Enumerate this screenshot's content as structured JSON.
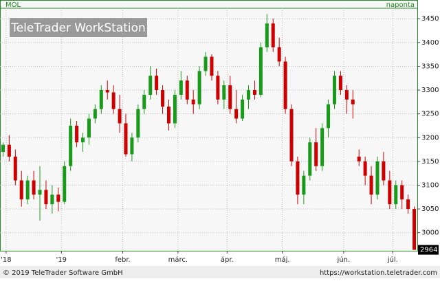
{
  "header": {
    "symbol": "MOL",
    "interval": "naponta",
    "watermark": "TeleTrader WorkStation"
  },
  "footer": {
    "copyright": "© 2019 TeleTrader Software GmbH",
    "url": "https://workstation.teletrader.com"
  },
  "chart_data": {
    "type": "candlestick",
    "up_color": "#1a9a1a",
    "down_color": "#cc0000",
    "grid": true,
    "ylim": [
      2962,
      3472
    ],
    "yticks": [
      3000,
      3050,
      3100,
      3150,
      3200,
      3250,
      3300,
      3350,
      3400,
      3450
    ],
    "xlim": [
      0,
      68
    ],
    "xticks": [
      {
        "value": 1,
        "label": "'18"
      },
      {
        "value": 10,
        "label": "'19"
      },
      {
        "value": 20,
        "label": "febr."
      },
      {
        "value": 29,
        "label": "márc."
      },
      {
        "value": 37,
        "label": "ápr."
      },
      {
        "value": 46,
        "label": "máj."
      },
      {
        "value": 56,
        "label": "jún."
      },
      {
        "value": 64,
        "label": "júl."
      }
    ],
    "last_price": 2964,
    "open": [
      3170,
      3185,
      3160,
      3110,
      3070,
      3110,
      3080,
      3090,
      3060,
      3080,
      3065,
      3140,
      3225,
      3190,
      3200,
      3240,
      3260,
      3300,
      3295,
      3260,
      3230,
      3165,
      3200,
      3260,
      3290,
      3330,
      3300,
      3265,
      3230,
      3290,
      3320,
      3280,
      3270,
      3340,
      3370,
      3330,
      3280,
      3310,
      3260,
      3240,
      3280,
      3300,
      3290,
      3390,
      3440,
      3390,
      3360,
      3260,
      3150,
      3080,
      3120,
      3190,
      3140,
      3220,
      3270,
      3330,
      3300,
      3280,
      3160,
      3150,
      3120,
      3080,
      3150,
      3110,
      3060,
      3100,
      3070,
      3050
    ],
    "high": [
      3190,
      3205,
      3175,
      3130,
      3120,
      3130,
      3140,
      3110,
      3100,
      3095,
      3150,
      3240,
      3235,
      3210,
      3250,
      3270,
      3310,
      3320,
      3310,
      3290,
      3250,
      3210,
      3270,
      3300,
      3350,
      3345,
      3310,
      3280,
      3300,
      3340,
      3330,
      3300,
      3350,
      3380,
      3375,
      3340,
      3320,
      3330,
      3300,
      3290,
      3310,
      3320,
      3400,
      3460,
      3450,
      3410,
      3370,
      3270,
      3160,
      3130,
      3200,
      3220,
      3230,
      3280,
      3340,
      3340,
      3310,
      3300,
      3175,
      3160,
      3140,
      3160,
      3170,
      3130,
      3110,
      3110,
      3080,
      3055
    ],
    "low": [
      3160,
      3150,
      3100,
      3055,
      3060,
      3070,
      3025,
      3050,
      3040,
      3045,
      3060,
      3130,
      3180,
      3170,
      3185,
      3230,
      3250,
      3280,
      3250,
      3210,
      3160,
      3150,
      3190,
      3250,
      3280,
      3290,
      3250,
      3215,
      3220,
      3280,
      3270,
      3250,
      3260,
      3330,
      3320,
      3270,
      3260,
      3250,
      3230,
      3235,
      3260,
      3280,
      3285,
      3380,
      3380,
      3350,
      3250,
      3140,
      3060,
      3060,
      3110,
      3130,
      3130,
      3200,
      3260,
      3290,
      3250,
      3240,
      3140,
      3100,
      3060,
      3070,
      3100,
      3050,
      3050,
      3050,
      3040,
      2964
    ],
    "close": [
      3185,
      3160,
      3110,
      3070,
      3110,
      3080,
      3090,
      3060,
      3080,
      3065,
      3140,
      3225,
      3190,
      3200,
      3240,
      3260,
      3300,
      3295,
      3260,
      3230,
      3165,
      3200,
      3260,
      3290,
      3330,
      3300,
      3265,
      3230,
      3290,
      3320,
      3280,
      3270,
      3340,
      3370,
      3330,
      3280,
      3310,
      3260,
      3240,
      3280,
      3300,
      3290,
      3390,
      3440,
      3390,
      3360,
      3260,
      3150,
      3080,
      3120,
      3190,
      3140,
      3220,
      3270,
      3330,
      3300,
      3280,
      3270,
      3150,
      3120,
      3080,
      3150,
      3110,
      3060,
      3100,
      3070,
      3050,
      2964
    ]
  }
}
